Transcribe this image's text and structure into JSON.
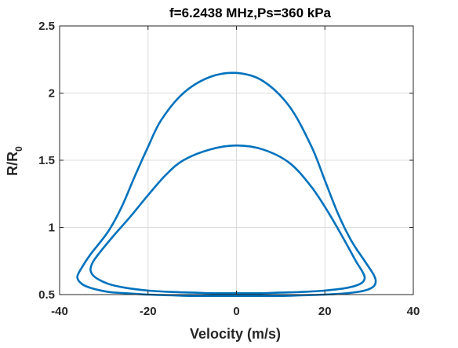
{
  "chart_data": {
    "type": "line",
    "title": "f=6.2438 MHz,Ps=360 kPa",
    "xlabel": "Velocity (m/s)",
    "ylabel_main": "R/R",
    "ylabel_sub": "0",
    "xlim": [
      -40,
      40
    ],
    "ylim": [
      0.5,
      2.5
    ],
    "xticks": [
      "-40",
      "-20",
      "0",
      "20",
      "40"
    ],
    "yticks": [
      "0.5",
      "1",
      "1.5",
      "2",
      "2.5"
    ],
    "xtick_values": [
      -40,
      -20,
      0,
      20,
      40
    ],
    "ytick_values": [
      0.5,
      1,
      1.5,
      2,
      2.5
    ],
    "grid": true,
    "line_color": "#0072BD",
    "series": [
      {
        "x": [
          0,
          6,
          12,
          17,
          20,
          23,
          26,
          29,
          31,
          31.5,
          31,
          29,
          25,
          20,
          15,
          10,
          5,
          0,
          -5,
          -10,
          -15,
          -20,
          -25,
          -29,
          -33,
          -35,
          -36,
          -35,
          -33,
          -29,
          -26,
          -23,
          -20,
          -17,
          -12,
          -6,
          0
        ],
        "y": [
          2.15,
          2.09,
          1.9,
          1.6,
          1.35,
          1.1,
          0.9,
          0.75,
          0.65,
          0.6,
          0.56,
          0.53,
          0.51,
          0.5,
          0.495,
          0.49,
          0.49,
          0.49,
          0.49,
          0.49,
          0.495,
          0.5,
          0.51,
          0.52,
          0.55,
          0.58,
          0.63,
          0.7,
          0.8,
          0.97,
          1.15,
          1.38,
          1.6,
          1.8,
          2.0,
          2.12,
          2.15
        ]
      },
      {
        "x": [
          0,
          6,
          12,
          17,
          21,
          24.5,
          27,
          28.5,
          29,
          28,
          25,
          20,
          15,
          10,
          5,
          0,
          -5,
          -10,
          -15,
          -20,
          -25,
          -29,
          -32,
          -33,
          -32.5,
          -31,
          -28,
          -24,
          -20,
          -16,
          -12,
          -6,
          0
        ],
        "y": [
          1.61,
          1.58,
          1.48,
          1.3,
          1.1,
          0.9,
          0.75,
          0.67,
          0.62,
          0.58,
          0.55,
          0.53,
          0.52,
          0.515,
          0.51,
          0.51,
          0.51,
          0.515,
          0.52,
          0.53,
          0.55,
          0.58,
          0.63,
          0.68,
          0.74,
          0.81,
          0.93,
          1.08,
          1.24,
          1.39,
          1.5,
          1.58,
          1.61
        ]
      }
    ]
  }
}
